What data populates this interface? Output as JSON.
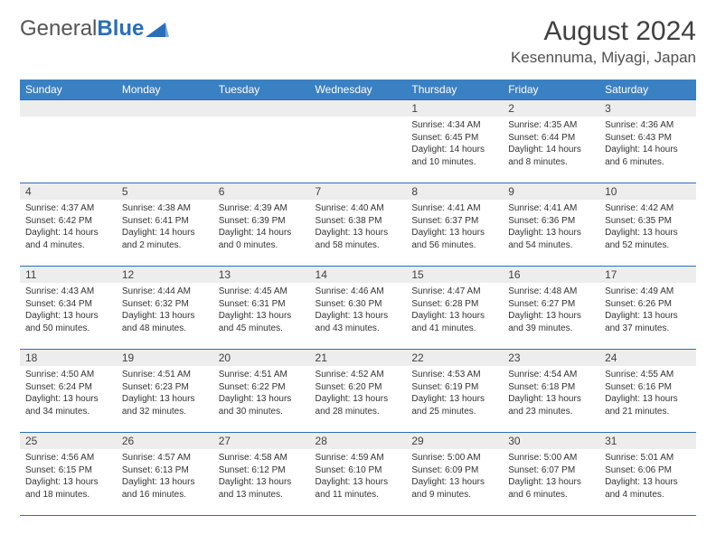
{
  "logo": {
    "word1": "General",
    "word2": "Blue"
  },
  "title": "August 2024",
  "location": "Kesennuma, Miyagi, Japan",
  "colors": {
    "header_bg": "#3a81c4",
    "rule": "#2a6ebb",
    "daynum_bg": "#ededed",
    "text": "#333333"
  },
  "daysOfWeek": [
    "Sunday",
    "Monday",
    "Tuesday",
    "Wednesday",
    "Thursday",
    "Friday",
    "Saturday"
  ],
  "weeks": [
    [
      null,
      null,
      null,
      null,
      {
        "n": "1",
        "sr": "4:34 AM",
        "ss": "6:45 PM",
        "dl": "14 hours and 10 minutes."
      },
      {
        "n": "2",
        "sr": "4:35 AM",
        "ss": "6:44 PM",
        "dl": "14 hours and 8 minutes."
      },
      {
        "n": "3",
        "sr": "4:36 AM",
        "ss": "6:43 PM",
        "dl": "14 hours and 6 minutes."
      }
    ],
    [
      {
        "n": "4",
        "sr": "4:37 AM",
        "ss": "6:42 PM",
        "dl": "14 hours and 4 minutes."
      },
      {
        "n": "5",
        "sr": "4:38 AM",
        "ss": "6:41 PM",
        "dl": "14 hours and 2 minutes."
      },
      {
        "n": "6",
        "sr": "4:39 AM",
        "ss": "6:39 PM",
        "dl": "14 hours and 0 minutes."
      },
      {
        "n": "7",
        "sr": "4:40 AM",
        "ss": "6:38 PM",
        "dl": "13 hours and 58 minutes."
      },
      {
        "n": "8",
        "sr": "4:41 AM",
        "ss": "6:37 PM",
        "dl": "13 hours and 56 minutes."
      },
      {
        "n": "9",
        "sr": "4:41 AM",
        "ss": "6:36 PM",
        "dl": "13 hours and 54 minutes."
      },
      {
        "n": "10",
        "sr": "4:42 AM",
        "ss": "6:35 PM",
        "dl": "13 hours and 52 minutes."
      }
    ],
    [
      {
        "n": "11",
        "sr": "4:43 AM",
        "ss": "6:34 PM",
        "dl": "13 hours and 50 minutes."
      },
      {
        "n": "12",
        "sr": "4:44 AM",
        "ss": "6:32 PM",
        "dl": "13 hours and 48 minutes."
      },
      {
        "n": "13",
        "sr": "4:45 AM",
        "ss": "6:31 PM",
        "dl": "13 hours and 45 minutes."
      },
      {
        "n": "14",
        "sr": "4:46 AM",
        "ss": "6:30 PM",
        "dl": "13 hours and 43 minutes."
      },
      {
        "n": "15",
        "sr": "4:47 AM",
        "ss": "6:28 PM",
        "dl": "13 hours and 41 minutes."
      },
      {
        "n": "16",
        "sr": "4:48 AM",
        "ss": "6:27 PM",
        "dl": "13 hours and 39 minutes."
      },
      {
        "n": "17",
        "sr": "4:49 AM",
        "ss": "6:26 PM",
        "dl": "13 hours and 37 minutes."
      }
    ],
    [
      {
        "n": "18",
        "sr": "4:50 AM",
        "ss": "6:24 PM",
        "dl": "13 hours and 34 minutes."
      },
      {
        "n": "19",
        "sr": "4:51 AM",
        "ss": "6:23 PM",
        "dl": "13 hours and 32 minutes."
      },
      {
        "n": "20",
        "sr": "4:51 AM",
        "ss": "6:22 PM",
        "dl": "13 hours and 30 minutes."
      },
      {
        "n": "21",
        "sr": "4:52 AM",
        "ss": "6:20 PM",
        "dl": "13 hours and 28 minutes."
      },
      {
        "n": "22",
        "sr": "4:53 AM",
        "ss": "6:19 PM",
        "dl": "13 hours and 25 minutes."
      },
      {
        "n": "23",
        "sr": "4:54 AM",
        "ss": "6:18 PM",
        "dl": "13 hours and 23 minutes."
      },
      {
        "n": "24",
        "sr": "4:55 AM",
        "ss": "6:16 PM",
        "dl": "13 hours and 21 minutes."
      }
    ],
    [
      {
        "n": "25",
        "sr": "4:56 AM",
        "ss": "6:15 PM",
        "dl": "13 hours and 18 minutes."
      },
      {
        "n": "26",
        "sr": "4:57 AM",
        "ss": "6:13 PM",
        "dl": "13 hours and 16 minutes."
      },
      {
        "n": "27",
        "sr": "4:58 AM",
        "ss": "6:12 PM",
        "dl": "13 hours and 13 minutes."
      },
      {
        "n": "28",
        "sr": "4:59 AM",
        "ss": "6:10 PM",
        "dl": "13 hours and 11 minutes."
      },
      {
        "n": "29",
        "sr": "5:00 AM",
        "ss": "6:09 PM",
        "dl": "13 hours and 9 minutes."
      },
      {
        "n": "30",
        "sr": "5:00 AM",
        "ss": "6:07 PM",
        "dl": "13 hours and 6 minutes."
      },
      {
        "n": "31",
        "sr": "5:01 AM",
        "ss": "6:06 PM",
        "dl": "13 hours and 4 minutes."
      }
    ]
  ],
  "labels": {
    "sunrise": "Sunrise: ",
    "sunset": "Sunset: ",
    "daylight": "Daylight: "
  }
}
